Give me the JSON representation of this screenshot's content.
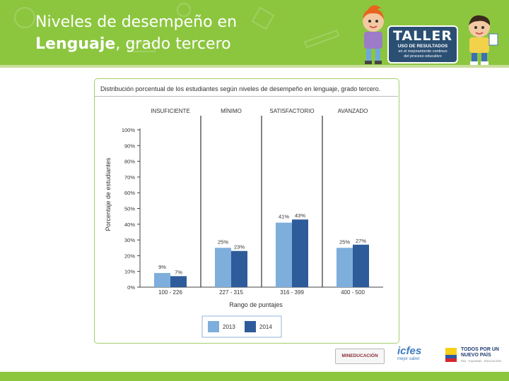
{
  "header": {
    "title_line1": "Niveles de desempeño en",
    "title_bold": "Lenguaje",
    "title_rest": ", grado tercero",
    "badge_title": "TALLER",
    "badge_subtitle": "USO DE RESULTADOS",
    "badge_desc1": "en el mejoramiento continuo",
    "badge_desc2": "del proceso educativo"
  },
  "colors": {
    "header_green": "#8cc63f",
    "series_2013": "#7eaedb",
    "series_2014": "#2e5b9a"
  },
  "chart_data": {
    "type": "bar",
    "title": "Distribución porcentual de los estudiantes según niveles de desempeño en lenguaje, grado tercero.",
    "ylabel": "Porcentaje de estudiantes",
    "xlabel": "Rango de puntajes",
    "ylim": [
      0,
      100
    ],
    "yticks": [
      "0%",
      "10%",
      "20%",
      "30%",
      "40%",
      "50%",
      "60%",
      "70%",
      "80%",
      "90%",
      "100%"
    ],
    "levels": [
      "INSUFICIENTE",
      "MÍNIMO",
      "SATISFACTORIO",
      "AVANZADO"
    ],
    "categories": [
      "100 - 226",
      "227 - 315",
      "316 - 399",
      "400 - 500"
    ],
    "series": [
      {
        "name": "2013",
        "values": [
          9,
          25,
          41,
          25
        ],
        "labels": [
          "9%",
          "25%",
          "41%",
          "25%"
        ]
      },
      {
        "name": "2014",
        "values": [
          7,
          23,
          43,
          27
        ],
        "labels": [
          "7%",
          "23%",
          "43%",
          "27%"
        ]
      }
    ],
    "legend_position": "bottom-center",
    "grid": false
  },
  "footer": {
    "mineducacion": "MINEDUCACIÓN",
    "icfes": "icfes",
    "icfes_sub": "mejor saber",
    "pais_line1": "TODOS POR UN",
    "pais_line2": "NUEVO PAÍS",
    "pais_line3": "PAZ · EQUIDAD · EDUCACIÓN"
  }
}
